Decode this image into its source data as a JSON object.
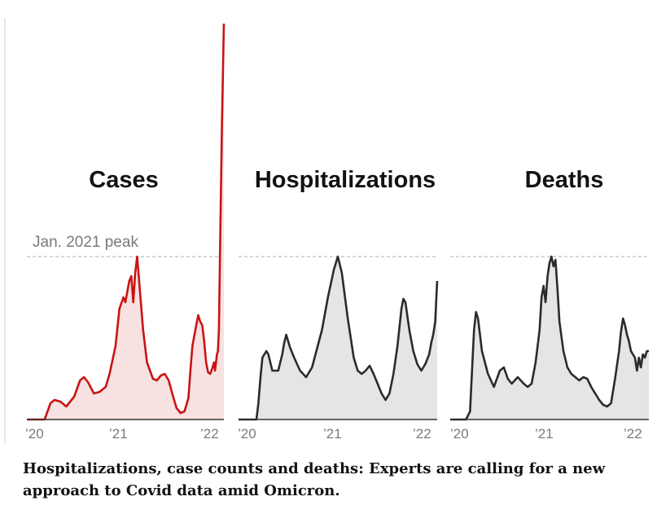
{
  "caption": "Hospitalizations, case counts and deaths: Experts are calling for a new approach to Covid data amid Omicron.",
  "colors": {
    "cases_line": "#c81414",
    "cases_fill": "#f7e1e1",
    "line": "#2b2b2b",
    "fill": "#e5e5e5",
    "peak_line": "#c8c8c8",
    "tick_text": "#7a7a7a"
  },
  "chart_data": [
    {
      "type": "area",
      "title": "Cases",
      "annotation": "Jan. 2021 peak",
      "peak_value": 100,
      "y_unit": "percent of Jan. 2021 peak",
      "ylim": [
        0,
        245
      ],
      "x_ticks": [
        "’20",
        "’21",
        "’22"
      ],
      "points": [
        [
          0,
          0
        ],
        [
          0.04,
          0
        ],
        [
          0.09,
          0
        ],
        [
          0.12,
          10
        ],
        [
          0.14,
          12
        ],
        [
          0.17,
          11
        ],
        [
          0.2,
          8
        ],
        [
          0.24,
          14
        ],
        [
          0.27,
          24
        ],
        [
          0.29,
          26
        ],
        [
          0.31,
          23
        ],
        [
          0.34,
          16
        ],
        [
          0.37,
          17
        ],
        [
          0.4,
          20
        ],
        [
          0.42,
          28
        ],
        [
          0.45,
          45
        ],
        [
          0.47,
          68
        ],
        [
          0.49,
          75
        ],
        [
          0.5,
          72
        ],
        [
          0.52,
          85
        ],
        [
          0.53,
          88
        ],
        [
          0.54,
          72
        ],
        [
          0.55,
          90
        ],
        [
          0.56,
          100
        ],
        [
          0.57,
          85
        ],
        [
          0.59,
          55
        ],
        [
          0.61,
          35
        ],
        [
          0.64,
          25
        ],
        [
          0.66,
          24
        ],
        [
          0.68,
          27
        ],
        [
          0.7,
          28
        ],
        [
          0.72,
          24
        ],
        [
          0.74,
          15
        ],
        [
          0.76,
          7
        ],
        [
          0.78,
          4
        ],
        [
          0.8,
          5
        ],
        [
          0.82,
          13
        ],
        [
          0.83,
          30
        ],
        [
          0.84,
          45
        ],
        [
          0.86,
          58
        ],
        [
          0.87,
          64
        ],
        [
          0.88,
          60
        ],
        [
          0.89,
          58
        ],
        [
          0.9,
          48
        ],
        [
          0.91,
          35
        ],
        [
          0.92,
          29
        ],
        [
          0.93,
          28
        ],
        [
          0.94,
          31
        ],
        [
          0.95,
          35
        ],
        [
          0.955,
          30
        ],
        [
          0.965,
          40
        ],
        [
          0.97,
          42
        ],
        [
          0.975,
          55
        ],
        [
          0.98,
          100
        ],
        [
          0.99,
          180
        ],
        [
          1,
          243
        ]
      ]
    },
    {
      "type": "area",
      "title": "Hospitalizations",
      "peak_value": 100,
      "y_unit": "percent of Jan. 2021 peak",
      "ylim": [
        0,
        245
      ],
      "x_ticks": [
        "’20",
        "’21",
        "’22"
      ],
      "points": [
        [
          0,
          0
        ],
        [
          0.09,
          0
        ],
        [
          0.1,
          10
        ],
        [
          0.11,
          25
        ],
        [
          0.12,
          38
        ],
        [
          0.14,
          42
        ],
        [
          0.15,
          40
        ],
        [
          0.17,
          30
        ],
        [
          0.2,
          30
        ],
        [
          0.22,
          40
        ],
        [
          0.23,
          47
        ],
        [
          0.24,
          52
        ],
        [
          0.26,
          44
        ],
        [
          0.28,
          38
        ],
        [
          0.31,
          30
        ],
        [
          0.34,
          26
        ],
        [
          0.37,
          32
        ],
        [
          0.42,
          55
        ],
        [
          0.45,
          75
        ],
        [
          0.48,
          92
        ],
        [
          0.5,
          100
        ],
        [
          0.52,
          90
        ],
        [
          0.55,
          62
        ],
        [
          0.58,
          38
        ],
        [
          0.6,
          30
        ],
        [
          0.62,
          28
        ],
        [
          0.64,
          30
        ],
        [
          0.66,
          33
        ],
        [
          0.68,
          28
        ],
        [
          0.7,
          22
        ],
        [
          0.72,
          16
        ],
        [
          0.74,
          12
        ],
        [
          0.76,
          16
        ],
        [
          0.78,
          28
        ],
        [
          0.8,
          45
        ],
        [
          0.82,
          68
        ],
        [
          0.83,
          74
        ],
        [
          0.84,
          72
        ],
        [
          0.86,
          55
        ],
        [
          0.88,
          42
        ],
        [
          0.9,
          34
        ],
        [
          0.92,
          30
        ],
        [
          0.94,
          34
        ],
        [
          0.96,
          40
        ],
        [
          0.97,
          47
        ],
        [
          0.98,
          52
        ],
        [
          0.99,
          60
        ],
        [
          1,
          85
        ]
      ]
    },
    {
      "type": "area",
      "title": "Deaths",
      "peak_value": 100,
      "y_unit": "percent of Jan. 2021 peak",
      "ylim": [
        0,
        245
      ],
      "x_ticks": [
        "’20",
        "’21",
        "’22"
      ],
      "points": [
        [
          0,
          0
        ],
        [
          0.08,
          0
        ],
        [
          0.1,
          5
        ],
        [
          0.11,
          30
        ],
        [
          0.12,
          55
        ],
        [
          0.13,
          66
        ],
        [
          0.14,
          62
        ],
        [
          0.16,
          42
        ],
        [
          0.19,
          28
        ],
        [
          0.22,
          20
        ],
        [
          0.25,
          30
        ],
        [
          0.27,
          32
        ],
        [
          0.29,
          25
        ],
        [
          0.31,
          22
        ],
        [
          0.34,
          26
        ],
        [
          0.37,
          22
        ],
        [
          0.39,
          20
        ],
        [
          0.41,
          22
        ],
        [
          0.43,
          35
        ],
        [
          0.45,
          55
        ],
        [
          0.46,
          75
        ],
        [
          0.47,
          82
        ],
        [
          0.48,
          72
        ],
        [
          0.49,
          88
        ],
        [
          0.5,
          96
        ],
        [
          0.51,
          100
        ],
        [
          0.52,
          94
        ],
        [
          0.53,
          98
        ],
        [
          0.54,
          80
        ],
        [
          0.55,
          60
        ],
        [
          0.57,
          42
        ],
        [
          0.59,
          32
        ],
        [
          0.61,
          28
        ],
        [
          0.63,
          26
        ],
        [
          0.65,
          24
        ],
        [
          0.67,
          26
        ],
        [
          0.69,
          25
        ],
        [
          0.71,
          20
        ],
        [
          0.73,
          16
        ],
        [
          0.75,
          12
        ],
        [
          0.77,
          9
        ],
        [
          0.79,
          8
        ],
        [
          0.81,
          10
        ],
        [
          0.83,
          25
        ],
        [
          0.85,
          42
        ],
        [
          0.86,
          54
        ],
        [
          0.87,
          62
        ],
        [
          0.88,
          58
        ],
        [
          0.89,
          52
        ],
        [
          0.9,
          48
        ],
        [
          0.91,
          42
        ],
        [
          0.93,
          38
        ],
        [
          0.94,
          30
        ],
        [
          0.95,
          38
        ],
        [
          0.96,
          32
        ],
        [
          0.97,
          40
        ],
        [
          0.98,
          38
        ],
        [
          0.99,
          42
        ],
        [
          1,
          42
        ]
      ]
    }
  ]
}
